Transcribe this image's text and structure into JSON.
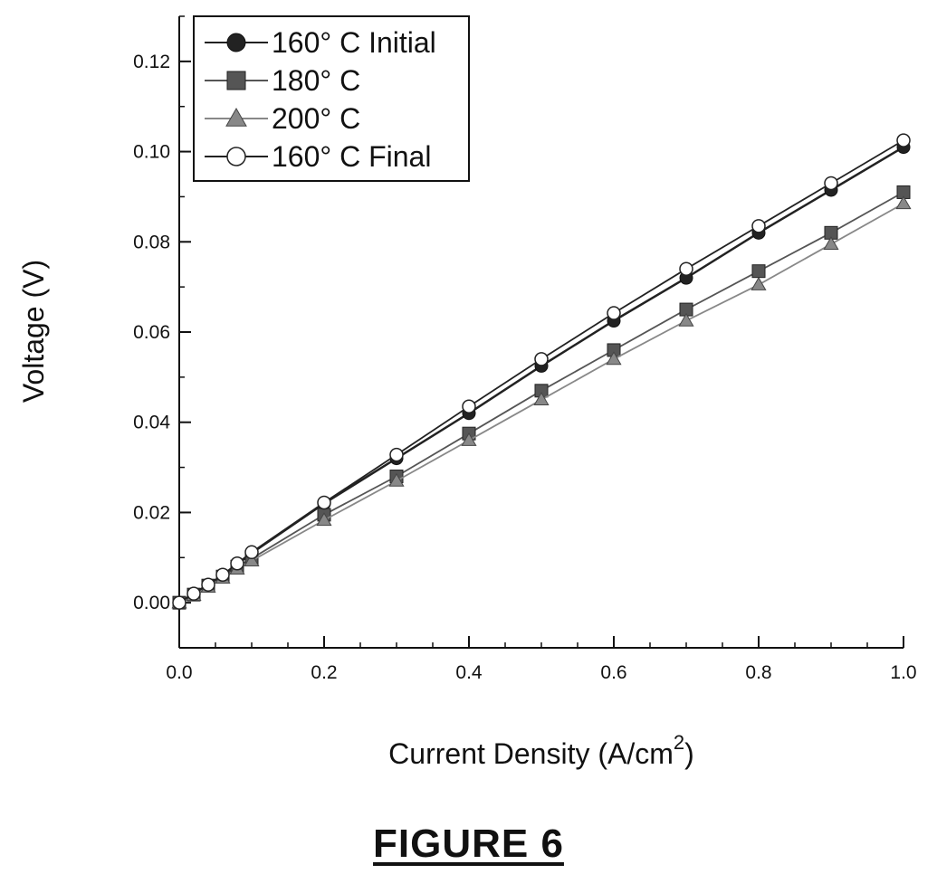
{
  "chart_data": {
    "type": "line",
    "title": "",
    "xlabel": "Current Density (A/cm",
    "xlabel_superscript": "2",
    "xlabel_close": ")",
    "ylabel": "Voltage (V)",
    "xlim": [
      0.0,
      1.0
    ],
    "ylim": [
      -0.01,
      0.13
    ],
    "xticks": [
      0.0,
      0.2,
      0.4,
      0.6,
      0.8,
      1.0
    ],
    "xtick_labels": [
      "0.0",
      "0.2",
      "0.4",
      "0.6",
      "0.8",
      "1.0"
    ],
    "yticks": [
      0.0,
      0.02,
      0.04,
      0.06,
      0.08,
      0.1,
      0.12
    ],
    "ytick_labels": [
      "0.00",
      "0.02",
      "0.04",
      "0.06",
      "0.08",
      "0.10",
      "0.12"
    ],
    "grid": false,
    "legend_position": "top-left",
    "x": [
      0.0,
      0.02,
      0.04,
      0.06,
      0.08,
      0.1,
      0.2,
      0.3,
      0.4,
      0.5,
      0.6,
      0.7,
      0.8,
      0.9,
      1.0
    ],
    "series": [
      {
        "name": "160° C Initial",
        "marker": "filled-circle",
        "color": "#222222",
        "values": [
          0.0,
          0.002,
          0.004,
          0.006,
          0.0085,
          0.011,
          0.022,
          0.032,
          0.042,
          0.0525,
          0.0625,
          0.072,
          0.082,
          0.0915,
          0.101
        ]
      },
      {
        "name": "180° C",
        "marker": "filled-square",
        "color": "#555555",
        "values": [
          0.0,
          0.0018,
          0.0038,
          0.0058,
          0.008,
          0.0098,
          0.0195,
          0.028,
          0.0375,
          0.047,
          0.056,
          0.065,
          0.0735,
          0.082,
          0.091
        ]
      },
      {
        "name": "200° C",
        "marker": "filled-triangle",
        "color": "#888888",
        "values": [
          0.0,
          0.0017,
          0.0035,
          0.0055,
          0.0075,
          0.0093,
          0.0183,
          0.027,
          0.036,
          0.045,
          0.054,
          0.0625,
          0.0705,
          0.0795,
          0.0885
        ]
      },
      {
        "name": "160° C Final",
        "marker": "open-circle",
        "color": "#222222",
        "values": [
          0.0,
          0.002,
          0.004,
          0.0062,
          0.0087,
          0.0112,
          0.0222,
          0.0328,
          0.0435,
          0.054,
          0.0642,
          0.074,
          0.0835,
          0.093,
          0.1025
        ]
      }
    ]
  },
  "caption": "FIGURE 6"
}
